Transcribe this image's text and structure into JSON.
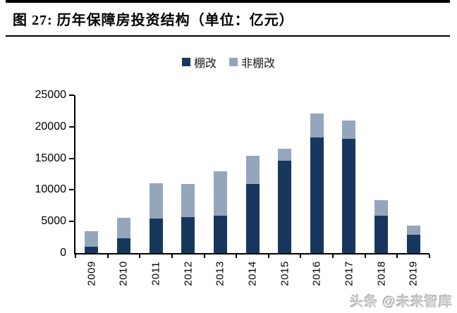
{
  "figure": {
    "title": "图 27:  历年保障房投资结构（单位：亿元）"
  },
  "watermark": "头条 @未来智库",
  "chart_data": {
    "type": "bar",
    "stacked": true,
    "title": "历年保障房投资结构（单位：亿元）",
    "categories": [
      "2009",
      "2010",
      "2011",
      "2012",
      "2013",
      "2014",
      "2015",
      "2016",
      "2017",
      "2018",
      "2019"
    ],
    "series": [
      {
        "name": "棚改",
        "color": "#17375E",
        "values": [
          1050,
          2300,
          5500,
          5700,
          5900,
          10900,
          14600,
          18300,
          18100,
          5950,
          2900
        ]
      },
      {
        "name": "非棚改",
        "color": "#95A5BC",
        "values": [
          2400,
          3300,
          5500,
          5200,
          7100,
          4500,
          1950,
          3800,
          2850,
          2400,
          1500
        ]
      }
    ],
    "xlabel": "",
    "ylabel": "",
    "ylim": [
      0,
      25000
    ],
    "ytick_interval": 5000,
    "yticks": [
      "0",
      "5000",
      "10000",
      "15000",
      "20000",
      "25000"
    ],
    "legend_position": "top-center",
    "grid": false
  }
}
